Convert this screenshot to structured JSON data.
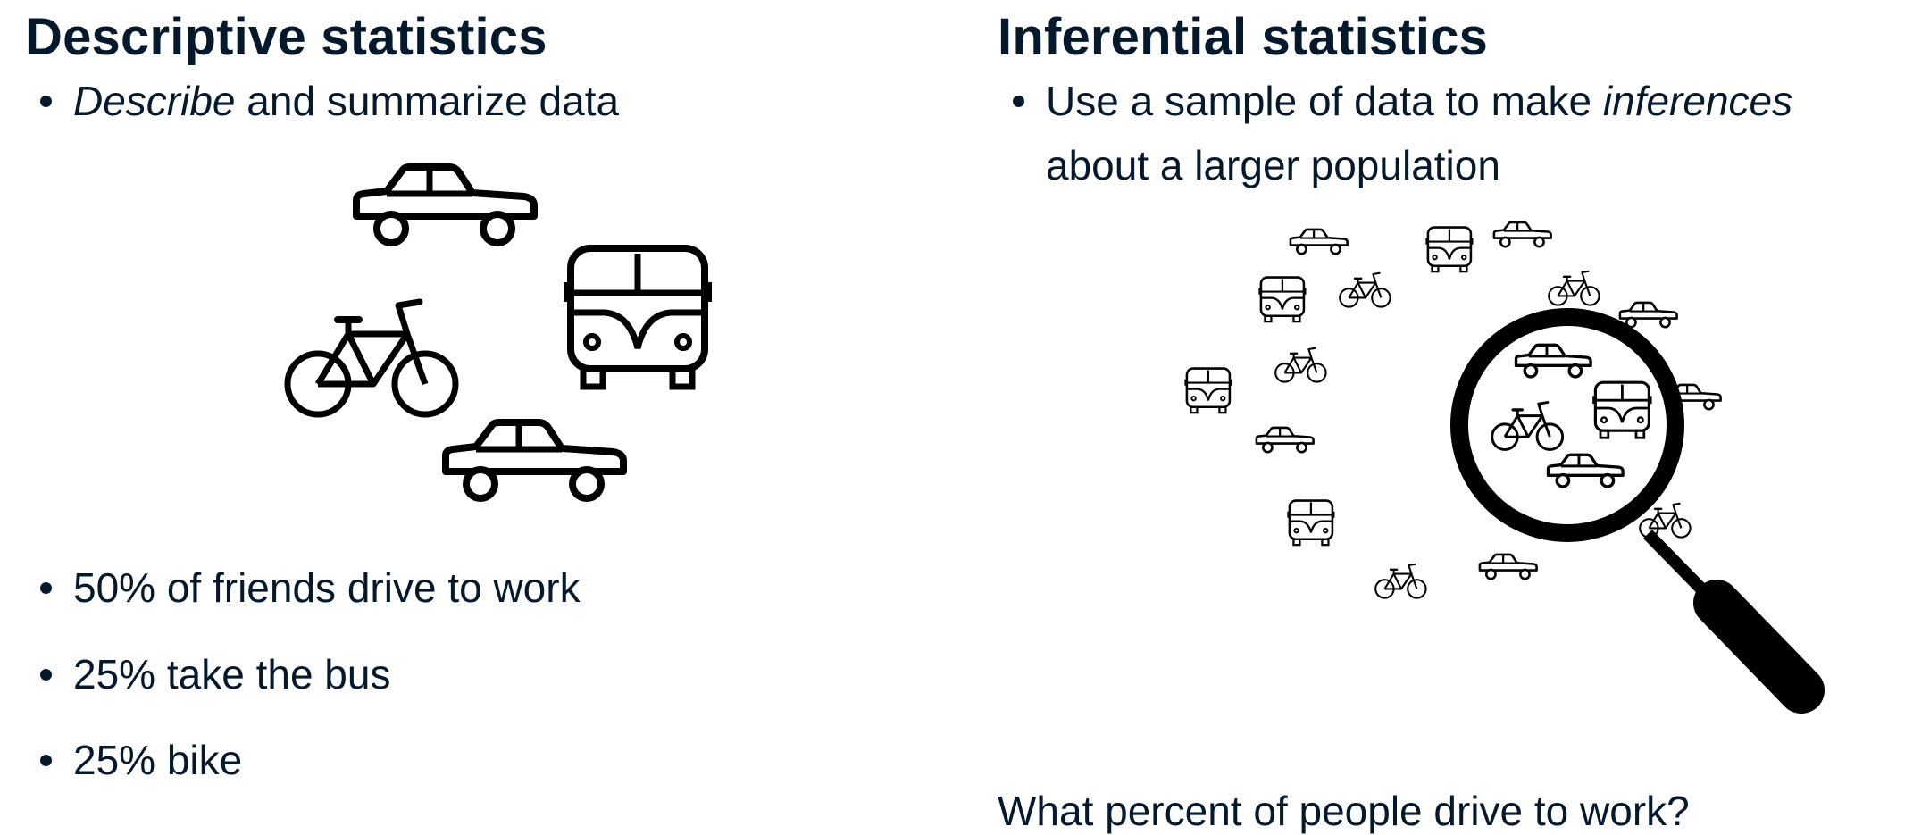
{
  "left": {
    "title": "Descriptive statistics",
    "intro": {
      "emph": "Describe",
      "rest": " and summarize data"
    },
    "facts": [
      "50% of friends drive to work",
      "25% take the bus",
      "25% bike"
    ]
  },
  "right": {
    "title": "Inferential statistics",
    "intro": {
      "pre": "Use a sample of data to make ",
      "emph": "inferences",
      "post": " about a larger population"
    },
    "question": "What percent of people drive to work?"
  },
  "icons": {
    "left_group": [
      "car-icon",
      "bike-icon",
      "bus-icon",
      "car-icon"
    ],
    "magnifier": "magnifier-icon"
  },
  "colors": {
    "text": "#05192d",
    "icon": "#000000"
  }
}
